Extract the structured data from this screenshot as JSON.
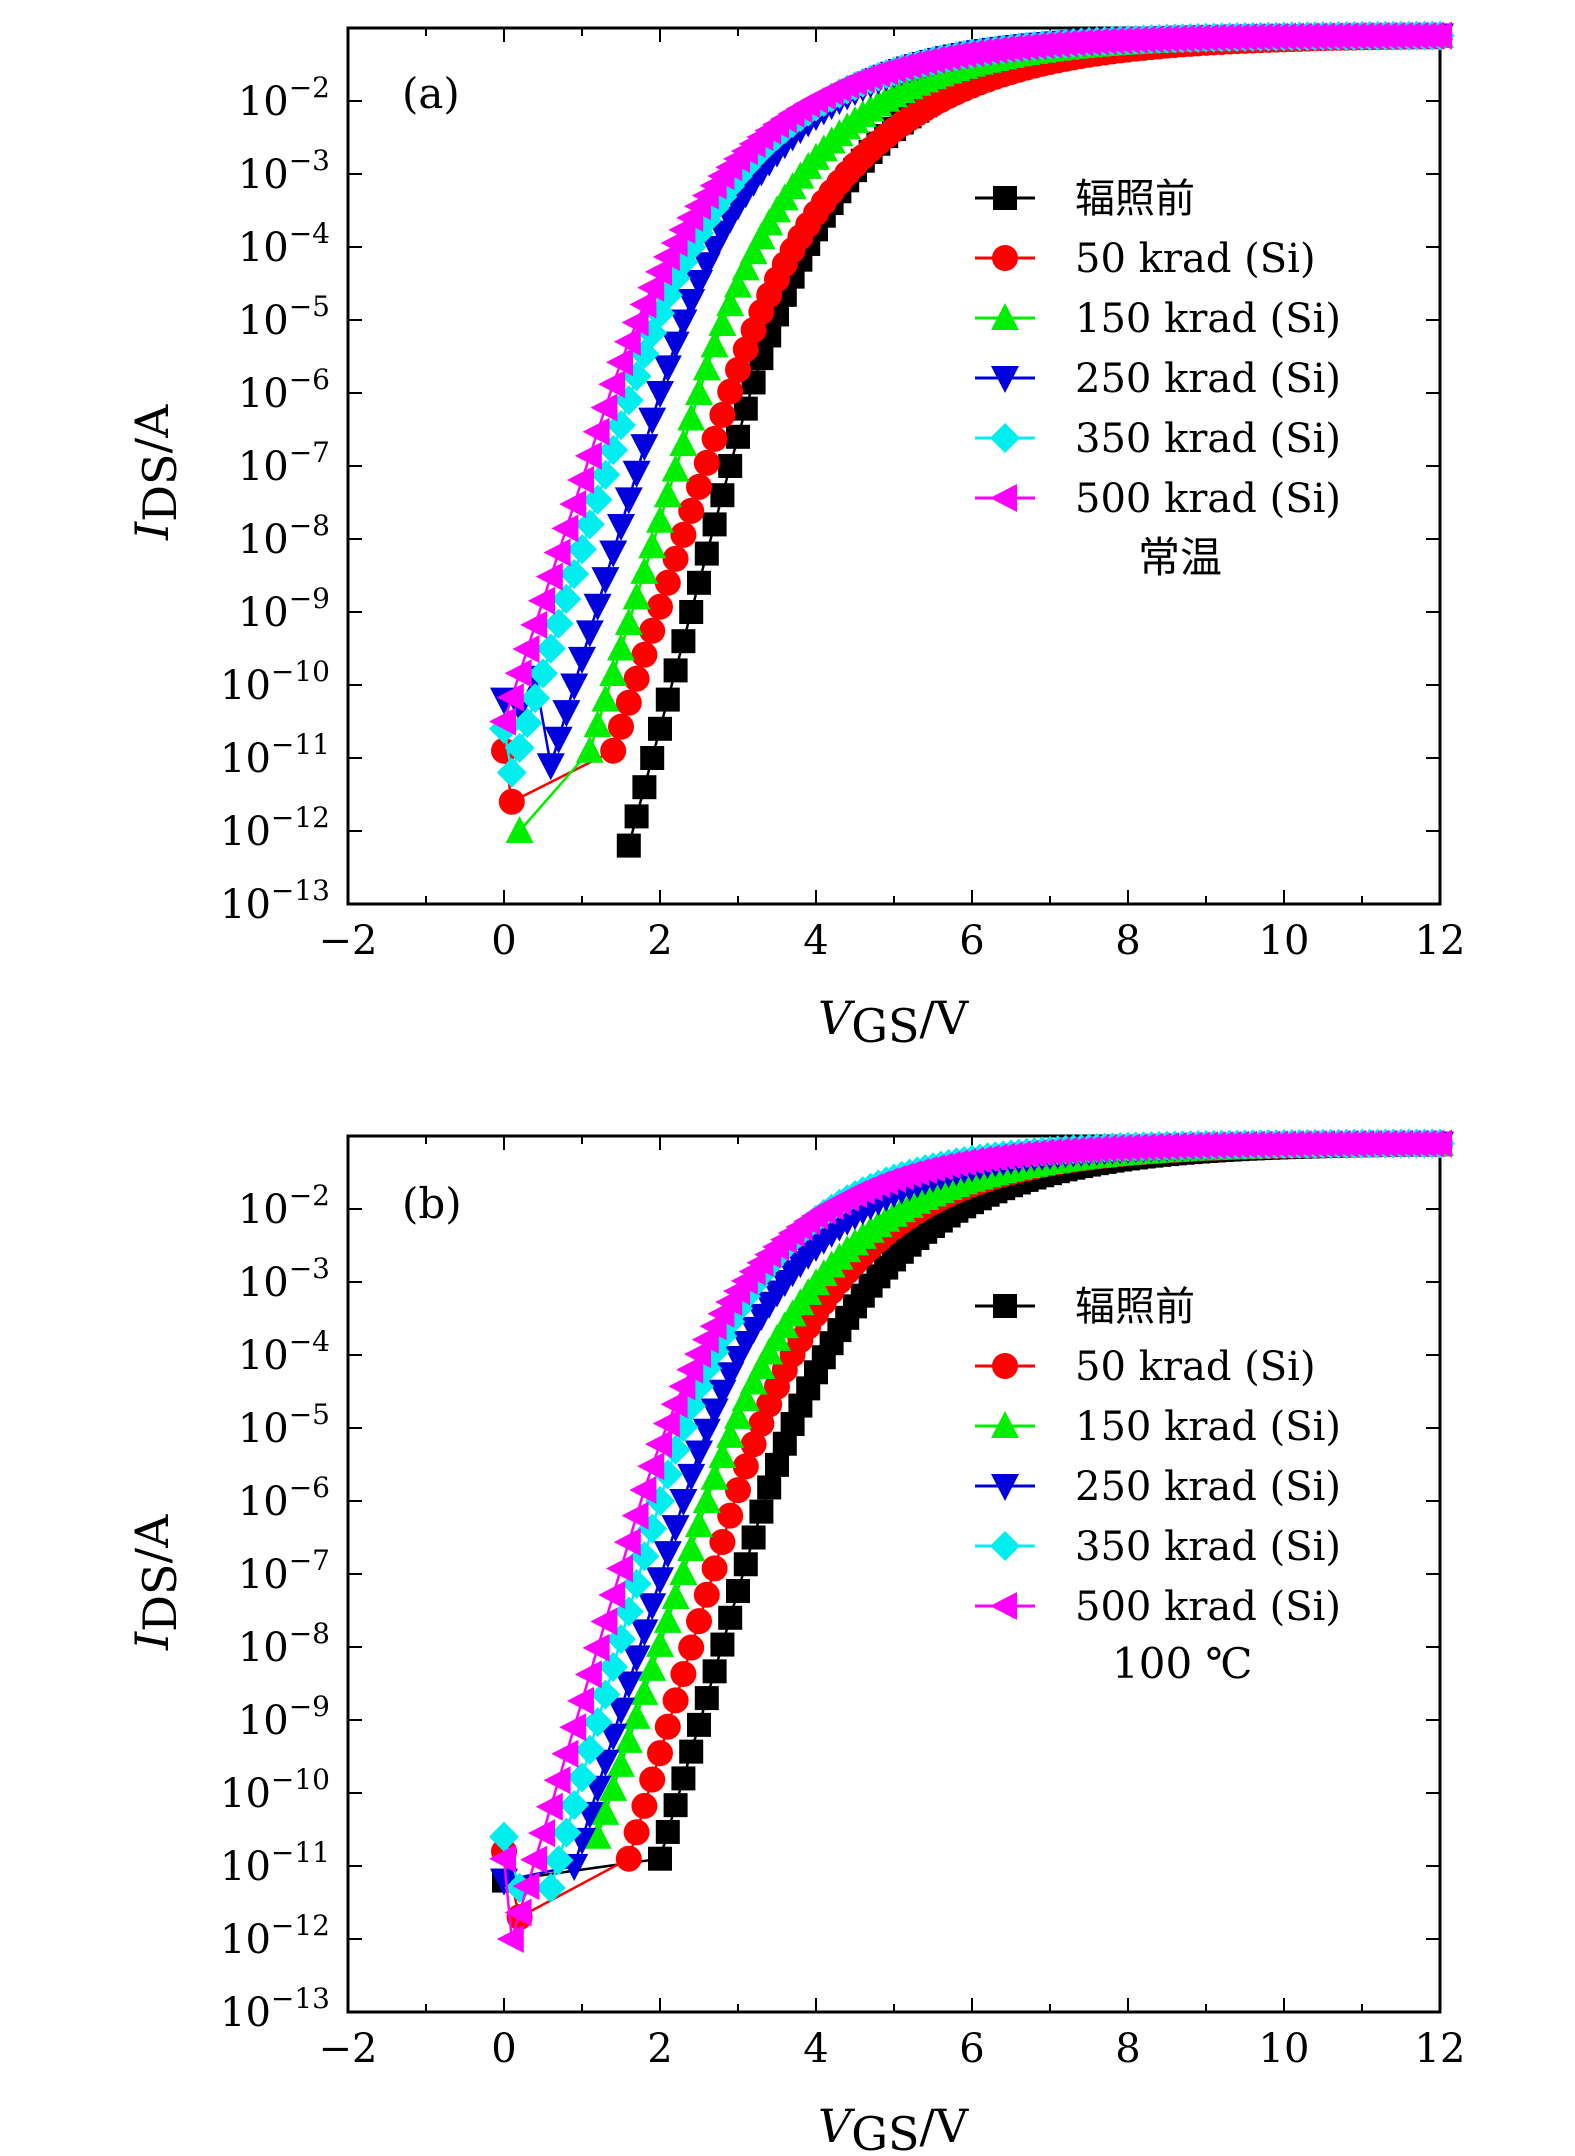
{
  "chart_data": [
    {
      "type": "line",
      "panel_label": "(a)",
      "condition_label": "常温",
      "xlabel": "V",
      "xlabel_sub": "GS",
      "xlabel_unit": "/V",
      "ylabel": "I",
      "ylabel_sub": "DS",
      "ylabel_unit": "/A",
      "xlim": [
        -2,
        12
      ],
      "ylim_exp": [
        -13,
        -1
      ],
      "y_scale": "log",
      "x_ticks": [
        "−2",
        "0",
        "2",
        "4",
        "6",
        "8",
        "10",
        "12"
      ],
      "y_ticks": [
        {
          "base": "10",
          "exp": "−2"
        },
        {
          "base": "10",
          "exp": "−3"
        },
        {
          "base": "10",
          "exp": "−4"
        },
        {
          "base": "10",
          "exp": "−5"
        },
        {
          "base": "10",
          "exp": "−6"
        },
        {
          "base": "10",
          "exp": "−7"
        },
        {
          "base": "10",
          "exp": "−8"
        },
        {
          "base": "10",
          "exp": "−9"
        },
        {
          "base": "10",
          "exp": "−10"
        },
        {
          "base": "10",
          "exp": "−11"
        },
        {
          "base": "10",
          "exp": "−12"
        },
        {
          "base": "10",
          "exp": "−13"
        }
      ],
      "legend_position": "right-middle",
      "series": [
        {
          "name": "辐照前",
          "color": "#000000",
          "marker": "square",
          "vstart": 1.6,
          "log_start": -12.2,
          "log_end": -1.1,
          "kink_v": 3.0,
          "kink_log": -6.6,
          "noise": []
        },
        {
          "name": "50 krad (Si)",
          "color": "#ff0000",
          "marker": "circle",
          "vstart": 1.4,
          "log_start": -10.9,
          "log_end": -1.1,
          "kink_v": 2.8,
          "kink_log": -6.3,
          "noise": [
            [
              0.0,
              -10.9
            ],
            [
              0.1,
              -11.6
            ]
          ]
        },
        {
          "name": "150 krad (Si)",
          "color": "#00ee00",
          "marker": "triangle-up",
          "vstart": 1.1,
          "log_start": -10.9,
          "log_end": -1.1,
          "kink_v": 2.5,
          "kink_log": -6.0,
          "noise": [
            [
              0.2,
              -12.0
            ]
          ]
        },
        {
          "name": "250 krad (Si)",
          "color": "#0000dd",
          "marker": "triangle-down",
          "vstart": 0.6,
          "log_start": -11.1,
          "log_end": -1.1,
          "kink_v": 2.0,
          "kink_log": -6.0,
          "noise": [
            [
              0.0,
              -10.2
            ],
            [
              0.2,
              -10.3
            ],
            [
              0.4,
              -9.9
            ]
          ]
        },
        {
          "name": "350 krad (Si)",
          "color": "#00eeee",
          "marker": "diamond",
          "vstart": 0.1,
          "log_start": -11.2,
          "log_end": -1.1,
          "kink_v": 1.6,
          "kink_log": -6.1,
          "noise": [
            [
              0.0,
              -10.6
            ]
          ]
        },
        {
          "name": "500 krad (Si)",
          "color": "#ff00ff",
          "marker": "triangle-left",
          "vstart": 0.0,
          "log_start": -10.5,
          "log_end": -1.1,
          "kink_v": 1.3,
          "kink_log": -6.2,
          "noise": []
        }
      ]
    },
    {
      "type": "line",
      "panel_label": "(b)",
      "condition_label": "100 ℃",
      "xlabel": "V",
      "xlabel_sub": "GS",
      "xlabel_unit": "/V",
      "ylabel": "I",
      "ylabel_sub": "DS",
      "ylabel_unit": "/A",
      "xlim": [
        -2,
        12
      ],
      "ylim_exp": [
        -13,
        -1
      ],
      "y_scale": "log",
      "x_ticks": [
        "−2",
        "0",
        "2",
        "4",
        "6",
        "8",
        "10",
        "12"
      ],
      "y_ticks": [
        {
          "base": "10",
          "exp": "−2"
        },
        {
          "base": "10",
          "exp": "−3"
        },
        {
          "base": "10",
          "exp": "−4"
        },
        {
          "base": "10",
          "exp": "−5"
        },
        {
          "base": "10",
          "exp": "−6"
        },
        {
          "base": "10",
          "exp": "−7"
        },
        {
          "base": "10",
          "exp": "−8"
        },
        {
          "base": "10",
          "exp": "−9"
        },
        {
          "base": "10",
          "exp": "−10"
        },
        {
          "base": "10",
          "exp": "−11"
        },
        {
          "base": "10",
          "exp": "−12"
        },
        {
          "base": "10",
          "exp": "−13"
        }
      ],
      "legend_position": "right-middle",
      "series": [
        {
          "name": "辐照前",
          "color": "#000000",
          "marker": "square",
          "vstart": 2.0,
          "log_start": -10.9,
          "log_end": -1.1,
          "kink_v": 3.2,
          "kink_log": -6.5,
          "noise": [
            [
              0.0,
              -11.2
            ]
          ]
        },
        {
          "name": "50 krad (Si)",
          "color": "#ff0000",
          "marker": "circle",
          "vstart": 1.6,
          "log_start": -10.9,
          "log_end": -1.1,
          "kink_v": 2.9,
          "kink_log": -6.2,
          "noise": [
            [
              0.0,
              -10.8
            ],
            [
              0.2,
              -11.7
            ]
          ]
        },
        {
          "name": "150 krad (Si)",
          "color": "#00ee00",
          "marker": "triangle-up",
          "vstart": 1.2,
          "log_start": -10.6,
          "log_end": -1.1,
          "kink_v": 2.6,
          "kink_log": -6.0,
          "noise": []
        },
        {
          "name": "250 krad (Si)",
          "color": "#0000dd",
          "marker": "triangle-down",
          "vstart": 0.9,
          "log_start": -11.0,
          "log_end": -1.1,
          "kink_v": 2.3,
          "kink_log": -6.0,
          "noise": [
            [
              0.0,
              -11.2
            ]
          ]
        },
        {
          "name": "350 krad (Si)",
          "color": "#00eeee",
          "marker": "diamond",
          "vstart": 0.6,
          "log_start": -11.3,
          "log_end": -1.1,
          "kink_v": 2.0,
          "kink_log": -6.0,
          "noise": [
            [
              0.0,
              -10.6
            ],
            [
              0.2,
              -11.3
            ]
          ]
        },
        {
          "name": "500 krad (Si)",
          "color": "#ff00ff",
          "marker": "triangle-left",
          "vstart": 0.1,
          "log_start": -12.0,
          "log_end": -1.1,
          "kink_v": 1.7,
          "kink_log": -6.2,
          "noise": [
            [
              0.0,
              -10.9
            ]
          ]
        }
      ]
    }
  ]
}
